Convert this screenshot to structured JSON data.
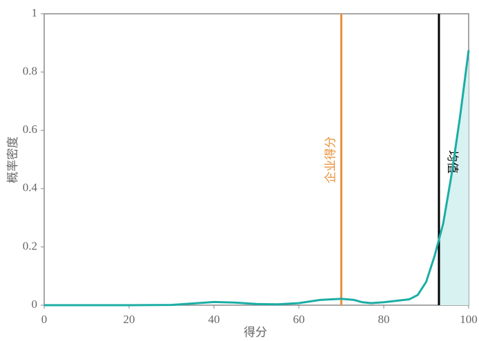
{
  "chart_data": {
    "type": "line",
    "x_label": "得分",
    "y_label": "概率密度",
    "xlim": [
      0,
      100
    ],
    "ylim": [
      0,
      1
    ],
    "xticks": [
      0,
      20,
      40,
      60,
      80,
      100
    ],
    "yticks": [
      0,
      0.2,
      0.4,
      0.6,
      0.8,
      1
    ],
    "series": [
      {
        "color": "#1aada5",
        "x": [
          0,
          10,
          20,
          30,
          35,
          40,
          45,
          50,
          55,
          60,
          65,
          70,
          73,
          75,
          77,
          80,
          83,
          86,
          88,
          90,
          92,
          94,
          96,
          98,
          100
        ],
        "values": [
          0,
          0,
          0,
          0.001,
          0.006,
          0.011,
          0.009,
          0.004,
          0.003,
          0.007,
          0.018,
          0.022,
          0.018,
          0.01,
          0.007,
          0.01,
          0.015,
          0.02,
          0.035,
          0.08,
          0.17,
          0.28,
          0.45,
          0.65,
          0.875
        ]
      }
    ],
    "vlines": [
      {
        "x": 70,
        "label": "企业得分",
        "color": "#e8913a",
        "shade_right": false
      },
      {
        "x": 93,
        "label": "均值",
        "color": "#000000",
        "shade_right": true
      }
    ],
    "shade_color": "#d8f1f1"
  }
}
